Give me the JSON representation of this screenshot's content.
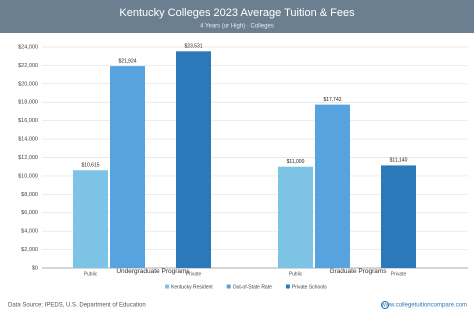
{
  "chart_data": {
    "type": "bar",
    "title": "Kentucky Colleges 2023 Average Tuition & Fees",
    "subtitle": "4 Years (or High) · Colleges",
    "categories": [
      "Undergraduate Programs",
      "Graduate Programs"
    ],
    "bar_tags": [
      "Public",
      null,
      "Private"
    ],
    "series": [
      {
        "name": "Kentucky Resident",
        "color": "#7cc3e6",
        "values": [
          10615,
          11000
        ],
        "value_labels": [
          "$10,615",
          "$11,000"
        ]
      },
      {
        "name": "Out-of-State Rate",
        "color": "#57a3e0",
        "values": [
          21924,
          17742
        ],
        "value_labels": [
          "$21,924",
          "$17,742"
        ]
      },
      {
        "name": "Private Schools",
        "color": "#2b79b8",
        "values": [
          23531,
          11140
        ],
        "value_labels": [
          "$23,531",
          "$11,140"
        ]
      }
    ],
    "ylim": [
      0,
      24000
    ],
    "yticks": [
      {
        "value": 0,
        "label": "$0"
      },
      {
        "value": 2000,
        "label": "$2,000"
      },
      {
        "value": 4000,
        "label": "$4,000"
      },
      {
        "value": 6000,
        "label": "$6,000"
      },
      {
        "value": 8000,
        "label": "$8,000"
      },
      {
        "value": 10000,
        "label": "$10,000"
      },
      {
        "value": 12000,
        "label": "$12,000"
      },
      {
        "value": 14000,
        "label": "$14,000"
      },
      {
        "value": 16000,
        "label": "$16,000"
      },
      {
        "value": 18000,
        "label": "$18,000"
      },
      {
        "value": 20000,
        "label": "$20,000"
      },
      {
        "value": 22000,
        "label": "$22,000"
      },
      {
        "value": 24000,
        "label": "$24,000"
      }
    ],
    "grid": true,
    "legend": "bottom",
    "source": "Data Source: IPEDS, U.S. Department of Education",
    "website": "www.collegetuitioncompare.com"
  }
}
